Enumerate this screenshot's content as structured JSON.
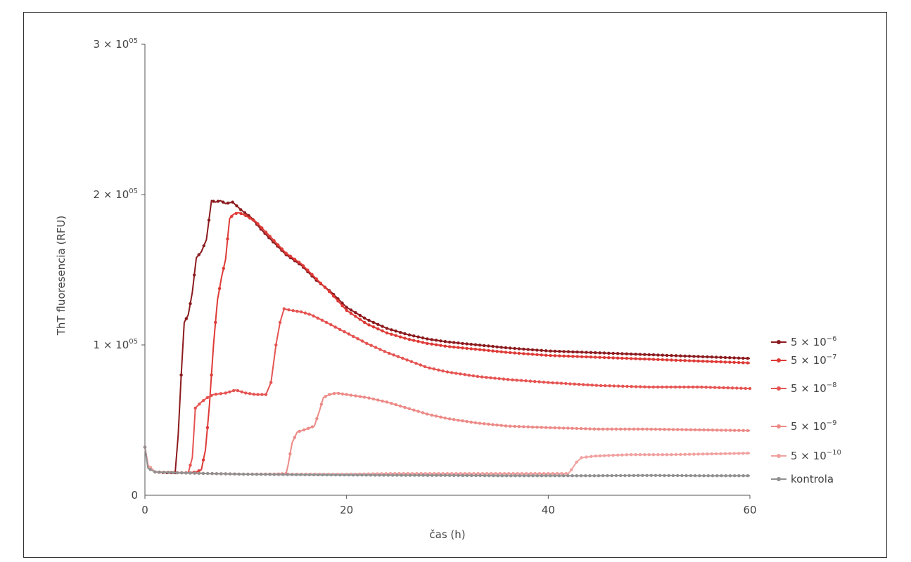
{
  "chart_data": {
    "type": "line",
    "title": "",
    "xlabel": "čas (h)",
    "ylabel": "ThT fluoresencia (RFU)",
    "xlim": [
      0,
      60
    ],
    "ylim": [
      0,
      300000
    ],
    "x_ticks": [
      {
        "value": 0,
        "label": "0"
      },
      {
        "value": 20,
        "label": "20"
      },
      {
        "value": 40,
        "label": "40"
      },
      {
        "value": 60,
        "label": "60"
      }
    ],
    "y_ticks": [
      {
        "value": 0,
        "label": "0",
        "mant": "",
        "exp": ""
      },
      {
        "value": 100000,
        "label": "",
        "mant": "1 × 10",
        "exp": "05"
      },
      {
        "value": 200000,
        "label": "",
        "mant": "2 × 10",
        "exp": "05"
      },
      {
        "value": 300000,
        "label": "",
        "mant": "3 × 10",
        "exp": "05"
      }
    ],
    "legend_position": "right",
    "grid": false,
    "series": [
      {
        "name": "5 × 10",
        "exp": "−6",
        "color": "#8b1a1e",
        "points": [
          [
            0,
            32000
          ],
          [
            0.3,
            20000
          ],
          [
            1,
            15500
          ],
          [
            2,
            15000
          ],
          [
            3,
            15000
          ],
          [
            3.3,
            40000
          ],
          [
            3.6,
            80000
          ],
          [
            3.9,
            115000
          ],
          [
            4.3,
            120000
          ],
          [
            4.7,
            135000
          ],
          [
            5.1,
            158000
          ],
          [
            5.6,
            162000
          ],
          [
            6.1,
            170000
          ],
          [
            6.6,
            196000
          ],
          [
            7,
            195000
          ],
          [
            7.5,
            196000
          ],
          [
            8,
            194000
          ],
          [
            8.7,
            195000
          ],
          [
            9.5,
            190000
          ],
          [
            10.5,
            185000
          ],
          [
            11.5,
            177000
          ],
          [
            12.5,
            170000
          ],
          [
            14,
            160000
          ],
          [
            15.5,
            153000
          ],
          [
            17,
            143000
          ],
          [
            18.5,
            135000
          ],
          [
            20,
            125000
          ],
          [
            22,
            117000
          ],
          [
            24,
            111000
          ],
          [
            26,
            107000
          ],
          [
            28,
            104000
          ],
          [
            30,
            102000
          ],
          [
            33,
            100000
          ],
          [
            36,
            98000
          ],
          [
            40,
            96000
          ],
          [
            44,
            95000
          ],
          [
            48,
            94000
          ],
          [
            52,
            93000
          ],
          [
            56,
            92000
          ],
          [
            60,
            91000
          ]
        ]
      },
      {
        "name": "5 × 10",
        "exp": "−7",
        "color": "#de3a36",
        "points": [
          [
            0,
            32000
          ],
          [
            0.3,
            20000
          ],
          [
            1,
            15500
          ],
          [
            3,
            15000
          ],
          [
            4.5,
            15000
          ],
          [
            5.1,
            15500
          ],
          [
            5.6,
            17000
          ],
          [
            6,
            30000
          ],
          [
            6.4,
            60000
          ],
          [
            6.8,
            100000
          ],
          [
            7.2,
            130000
          ],
          [
            7.6,
            145000
          ],
          [
            8,
            157000
          ],
          [
            8.4,
            184000
          ],
          [
            8.8,
            187000
          ],
          [
            9.3,
            188000
          ],
          [
            10,
            186000
          ],
          [
            11,
            182000
          ],
          [
            12,
            175000
          ],
          [
            13,
            168000
          ],
          [
            14,
            161000
          ],
          [
            15.5,
            154000
          ],
          [
            17,
            144000
          ],
          [
            18.5,
            134000
          ],
          [
            20,
            123000
          ],
          [
            22,
            114000
          ],
          [
            24,
            108000
          ],
          [
            26,
            104000
          ],
          [
            28,
            101000
          ],
          [
            30,
            99000
          ],
          [
            33,
            97000
          ],
          [
            36,
            95000
          ],
          [
            40,
            93000
          ],
          [
            44,
            92000
          ],
          [
            48,
            91000
          ],
          [
            52,
            90000
          ],
          [
            56,
            89000
          ],
          [
            60,
            88000
          ]
        ]
      },
      {
        "name": "5 × 10",
        "exp": "−8",
        "color": "#e55452",
        "points": [
          [
            0,
            32000
          ],
          [
            0.3,
            20000
          ],
          [
            1,
            15500
          ],
          [
            3,
            15000
          ],
          [
            4.3,
            15000
          ],
          [
            4.7,
            25000
          ],
          [
            5,
            58000
          ],
          [
            5.6,
            62000
          ],
          [
            6.2,
            65000
          ],
          [
            6.8,
            67000
          ],
          [
            8,
            68000
          ],
          [
            9,
            70000
          ],
          [
            10,
            68000
          ],
          [
            11,
            67000
          ],
          [
            12,
            67000
          ],
          [
            12.5,
            75000
          ],
          [
            13,
            100000
          ],
          [
            13.4,
            115000
          ],
          [
            13.8,
            124000
          ],
          [
            14.5,
            123000
          ],
          [
            15.5,
            122000
          ],
          [
            16.5,
            120000
          ],
          [
            18,
            115000
          ],
          [
            20,
            108000
          ],
          [
            22,
            101000
          ],
          [
            24,
            95000
          ],
          [
            26,
            90000
          ],
          [
            28,
            85000
          ],
          [
            30,
            82000
          ],
          [
            33,
            79000
          ],
          [
            36,
            77000
          ],
          [
            40,
            75000
          ],
          [
            45,
            73000
          ],
          [
            50,
            72000
          ],
          [
            55,
            72000
          ],
          [
            60,
            71000
          ]
        ]
      },
      {
        "name": "5 × 10",
        "exp": "−9",
        "color": "#ec8a87",
        "points": [
          [
            0,
            32000
          ],
          [
            0.3,
            20000
          ],
          [
            1,
            15500
          ],
          [
            3,
            15000
          ],
          [
            6,
            14500
          ],
          [
            10,
            14000
          ],
          [
            13,
            14000
          ],
          [
            14,
            14500
          ],
          [
            14.2,
            20000
          ],
          [
            14.6,
            35000
          ],
          [
            15.1,
            42000
          ],
          [
            16,
            44000
          ],
          [
            16.8,
            46000
          ],
          [
            17.3,
            56000
          ],
          [
            17.7,
            65000
          ],
          [
            18.3,
            67000
          ],
          [
            19,
            68000
          ],
          [
            20,
            67000
          ],
          [
            22,
            65000
          ],
          [
            24,
            62000
          ],
          [
            26,
            58000
          ],
          [
            28,
            54000
          ],
          [
            30,
            51000
          ],
          [
            33,
            48000
          ],
          [
            36,
            46000
          ],
          [
            40,
            45000
          ],
          [
            45,
            44000
          ],
          [
            50,
            44000
          ],
          [
            55,
            43500
          ],
          [
            60,
            43000
          ]
        ]
      },
      {
        "name": "5 × 10",
        "exp": "−10",
        "color": "#f0a19f",
        "points": [
          [
            0,
            32000
          ],
          [
            0.3,
            20000
          ],
          [
            1,
            15500
          ],
          [
            3,
            15000
          ],
          [
            6,
            14500
          ],
          [
            10,
            14000
          ],
          [
            14,
            14000
          ],
          [
            20,
            14000
          ],
          [
            25,
            14500
          ],
          [
            30,
            14500
          ],
          [
            35,
            14500
          ],
          [
            40,
            14500
          ],
          [
            42,
            14500
          ],
          [
            42.3,
            17000
          ],
          [
            42.8,
            22000
          ],
          [
            43.3,
            25000
          ],
          [
            44.5,
            26000
          ],
          [
            46,
            26500
          ],
          [
            48,
            27000
          ],
          [
            52,
            27000
          ],
          [
            56,
            27500
          ],
          [
            60,
            28000
          ]
        ]
      },
      {
        "name": "kontrola",
        "exp": "",
        "color": "#909090",
        "points": [
          [
            0,
            32000
          ],
          [
            0.3,
            18000
          ],
          [
            1,
            15500
          ],
          [
            3,
            15000
          ],
          [
            6,
            14500
          ],
          [
            10,
            14000
          ],
          [
            15,
            13700
          ],
          [
            20,
            13500
          ],
          [
            25,
            13300
          ],
          [
            30,
            13200
          ],
          [
            35,
            13000
          ],
          [
            40,
            13000
          ],
          [
            45,
            13000
          ],
          [
            50,
            13200
          ],
          [
            55,
            13000
          ],
          [
            60,
            13000
          ]
        ]
      }
    ]
  }
}
